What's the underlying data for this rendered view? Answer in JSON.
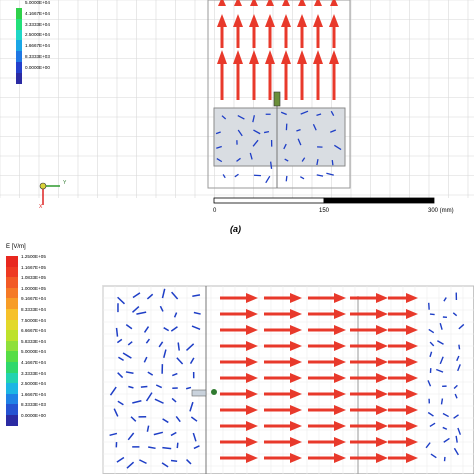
{
  "top_panel": {
    "legend": {
      "labels": [
        "5.0000E+04",
        "4.1667E+04",
        "3.3333E+04",
        "2.5000E+04",
        "1.6667E+04",
        "8.3333E+03",
        "0.0000E+00"
      ],
      "colors": [
        "#2fd14a",
        "#22e07a",
        "#1fd7c7",
        "#1aa6e6",
        "#1f77e3",
        "#233fcc",
        "#2b2ba3"
      ]
    },
    "scale_bar": {
      "ticks": [
        "0",
        "150",
        "300 (mm)"
      ]
    },
    "axes_triad": {
      "y_label": "Y",
      "x_label": "X"
    }
  },
  "caption_a": "(a)",
  "bottom_panel": {
    "legend": {
      "title": "E [V/m]",
      "labels": [
        "1.2500E+05",
        "1.1667E+05",
        "1.0833E+05",
        "1.0000E+05",
        "9.1667E+04",
        "8.3333E+04",
        "7.5000E+04",
        "6.6667E+04",
        "5.8333E+04",
        "5.0000E+04",
        "4.1667E+04",
        "3.3333E+04",
        "2.5000E+04",
        "1.6667E+04",
        "8.3333E+03",
        "0.0000E+00"
      ],
      "colors": [
        "#e8281f",
        "#ee3a22",
        "#f25a25",
        "#f57a26",
        "#f79d27",
        "#f6c12a",
        "#e2d92a",
        "#bde22b",
        "#8fe03a",
        "#56dd45",
        "#2fd86c",
        "#22d3b0",
        "#1cb6e4",
        "#1f82e6",
        "#2553d2",
        "#2b2ba3"
      ]
    }
  },
  "colors": {
    "arrow_red": "#e8392b",
    "arrow_blue": "#1e3ec6",
    "grid": "#d8d8d8"
  }
}
